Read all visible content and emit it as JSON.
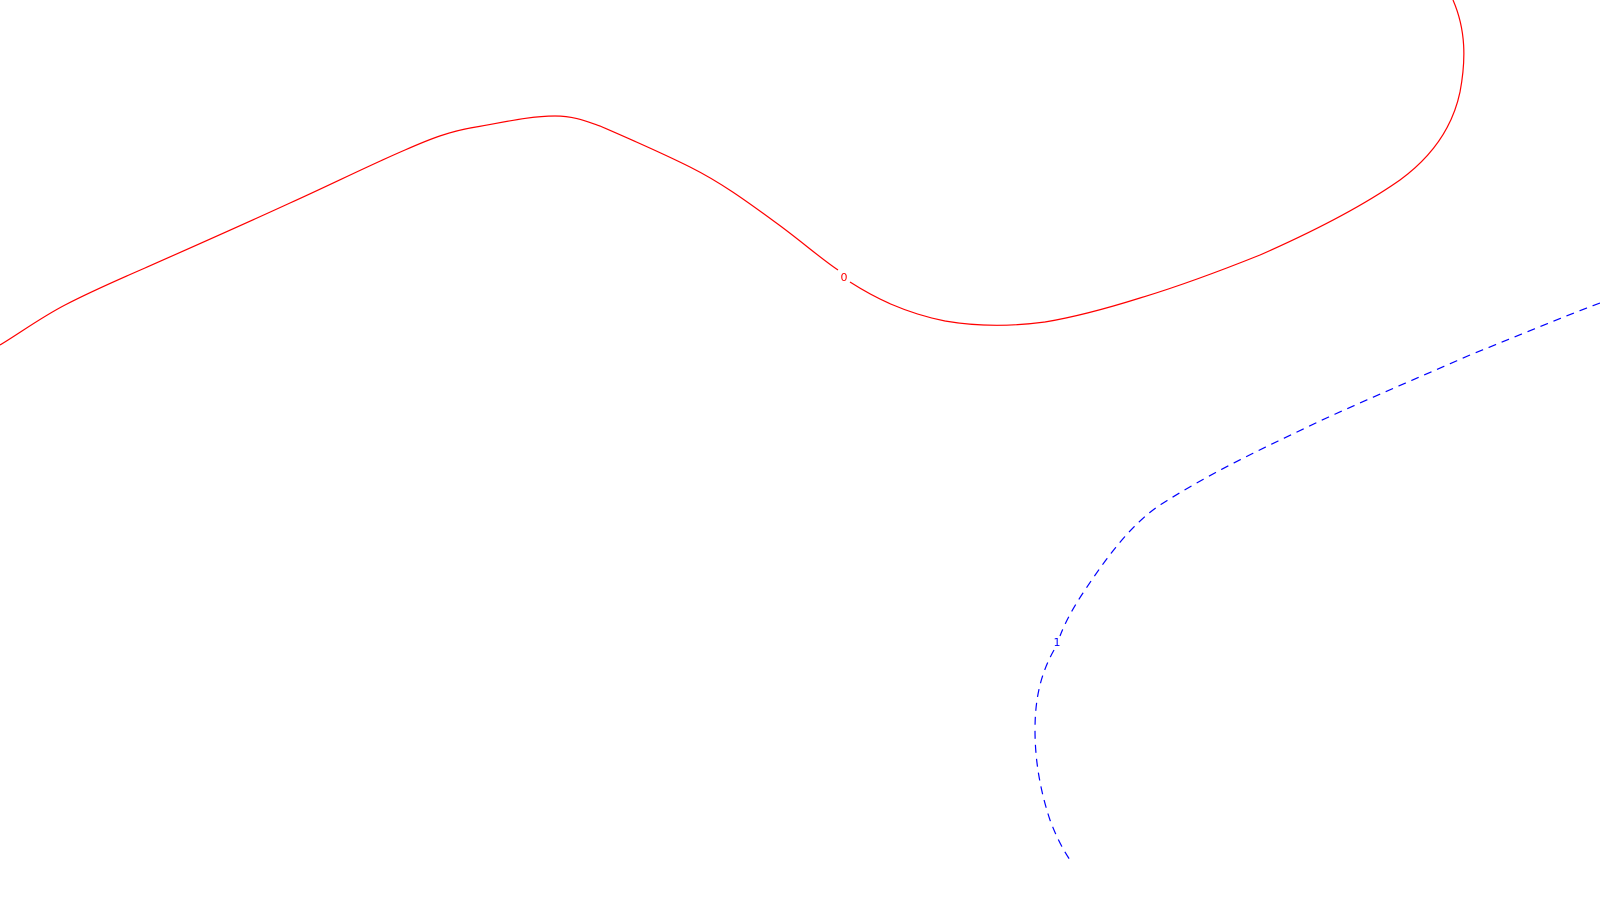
{
  "contours": [
    {
      "label": "0",
      "color": "#ff0000",
      "style": "solid"
    },
    {
      "label": "1",
      "color": "#0000ff",
      "style": "dashed"
    }
  ]
}
